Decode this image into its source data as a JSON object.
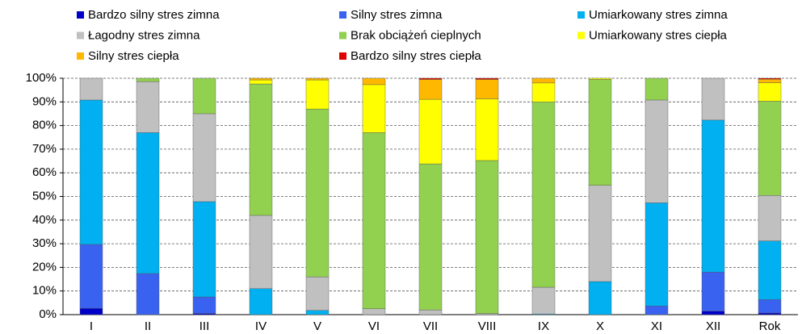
{
  "chart_data": {
    "type": "stacked_bar",
    "categories": [
      "I",
      "II",
      "III",
      "IV",
      "V",
      "VI",
      "VII",
      "VIII",
      "IX",
      "X",
      "XI",
      "XII",
      "Rok"
    ],
    "series": [
      {
        "name": "Bardzo silny stres zimna",
        "color": "#0000c8",
        "values": [
          2.7,
          0,
          0.5,
          0,
          0,
          0,
          0,
          0,
          0,
          0,
          0,
          1.5,
          0.7
        ]
      },
      {
        "name": "Silny stres zimna",
        "color": "#3a62f0",
        "values": [
          27,
          17.4,
          7,
          0,
          0,
          0,
          0,
          0,
          0,
          0,
          3.7,
          16.5,
          5.7
        ]
      },
      {
        "name": "Umiarkowany stres zimna",
        "color": "#00b0f0",
        "values": [
          61.1,
          59.6,
          40.3,
          11,
          1.8,
          0,
          0,
          0,
          0.3,
          14,
          43.6,
          64.3,
          24.8
        ]
      },
      {
        "name": "Łagodny stres zimna",
        "color": "#c0c0c0",
        "values": [
          9.2,
          21.6,
          37.2,
          31,
          14.2,
          2.5,
          2,
          0.5,
          11.3,
          40.7,
          43.5,
          17.7,
          19.2
        ]
      },
      {
        "name": "Brak obciążeń cieplnych",
        "color": "#92d050",
        "values": [
          0,
          1.4,
          15,
          55.6,
          71,
          74.5,
          61.8,
          64.7,
          78.4,
          44.8,
          9.2,
          0,
          39.9
        ]
      },
      {
        "name": "Umiarkowany stres ciepła",
        "color": "#ffff00",
        "values": [
          0,
          0,
          0,
          1.7,
          12.3,
          20.3,
          27.3,
          26.1,
          8,
          0.5,
          0,
          0,
          7.8
        ]
      },
      {
        "name": "Silny stres ciepła",
        "color": "#ffb800",
        "values": [
          0,
          0,
          0,
          0.7,
          0.7,
          2.7,
          8.4,
          8.2,
          2,
          0,
          0,
          0,
          1.5
        ]
      },
      {
        "name": "Bardzo silny stres ciepła",
        "color": "#e00000",
        "values": [
          0,
          0,
          0,
          0,
          0,
          0,
          0.5,
          0.5,
          0,
          0,
          0,
          0,
          0.4
        ]
      }
    ],
    "ylim": [
      0,
      100
    ],
    "yticks": [
      {
        "value": 0,
        "label": "0%"
      },
      {
        "value": 10,
        "label": "10%"
      },
      {
        "value": 20,
        "label": "20%"
      },
      {
        "value": 30,
        "label": "30%"
      },
      {
        "value": 40,
        "label": "40%"
      },
      {
        "value": 50,
        "label": "50%"
      },
      {
        "value": 60,
        "label": "60%"
      },
      {
        "value": 70,
        "label": "70%"
      },
      {
        "value": 80,
        "label": "80%"
      },
      {
        "value": 90,
        "label": "90%"
      },
      {
        "value": 100,
        "label": "100%"
      }
    ],
    "grid": true,
    "legend": "top"
  }
}
